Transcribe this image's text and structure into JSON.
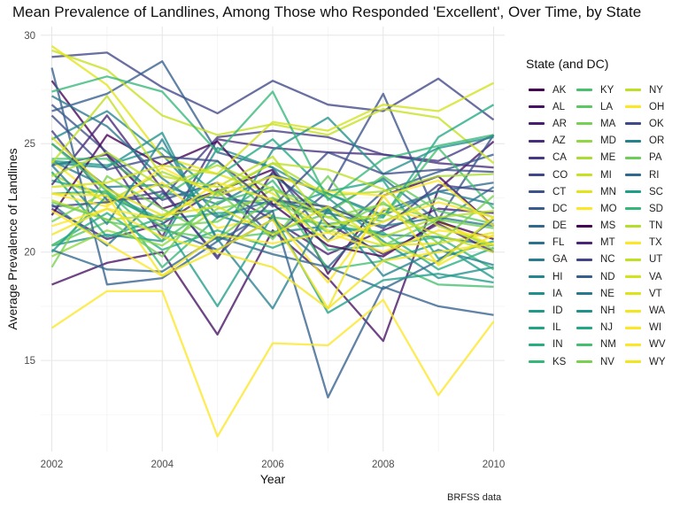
{
  "chart_data": {
    "type": "line",
    "title": "Mean Prevalence of Landlines, Among Those who Responded 'Excellent', Over Time, by State",
    "xlabel": "Year",
    "ylabel": "Average Prevalence of Landlines",
    "caption": "BRFSS data",
    "legend_title": "State (and DC)",
    "legend_position": "right",
    "grid": true,
    "xlim": [
      2001.8,
      2010.2
    ],
    "ylim": [
      10.8,
      30.4
    ],
    "x_ticks": [
      2002,
      2004,
      2006,
      2008,
      2010
    ],
    "y_ticks": [
      15,
      20,
      25,
      30
    ],
    "x": [
      2002,
      2003,
      2004,
      2005,
      2006,
      2007,
      2008,
      2009,
      2010
    ],
    "colormap": "viridis",
    "series": [
      {
        "name": "AK",
        "color": "#440154",
        "values": [
          27.9,
          24.5,
          22.0,
          22.8,
          23.8,
          19.0,
          22.6,
          23.5,
          21.2
        ]
      },
      {
        "name": "AL",
        "color": "#471164",
        "values": [
          18.5,
          19.5,
          20.0,
          16.2,
          21.0,
          18.8,
          15.9,
          22.9,
          25.1
        ]
      },
      {
        "name": "AR",
        "color": "#481F70",
        "values": [
          22.0,
          20.6,
          21.3,
          22.9,
          21.5,
          19.9,
          21.0,
          22.0,
          21.8
        ]
      },
      {
        "name": "AZ",
        "color": "#472D7B",
        "values": [
          24.0,
          24.5,
          20.7,
          25.2,
          24.8,
          24.6,
          24.5,
          24.1,
          23.9
        ]
      },
      {
        "name": "CA",
        "color": "#443A83",
        "values": [
          25.6,
          22.4,
          22.5,
          25.3,
          25.6,
          25.3,
          24.5,
          24.2,
          25.4
        ]
      },
      {
        "name": "CO",
        "color": "#404688",
        "values": [
          29.0,
          29.2,
          27.6,
          26.4,
          27.9,
          26.8,
          26.5,
          28.0,
          26.1
        ]
      },
      {
        "name": "CT",
        "color": "#3B528B",
        "values": [
          26.8,
          24.6,
          22.4,
          23.2,
          20.7,
          22.8,
          27.3,
          21.5,
          25.4
        ]
      },
      {
        "name": "DC",
        "color": "#365D8D",
        "values": [
          26.5,
          27.3,
          28.8,
          24.6,
          23.9,
          20.5,
          22.8,
          23.7,
          24.5
        ]
      },
      {
        "name": "DE",
        "color": "#31688E",
        "values": [
          25.0,
          23.0,
          21.1,
          20.1,
          21.5,
          19.3,
          21.9,
          22.8,
          23.2
        ]
      },
      {
        "name": "FL",
        "color": "#2C728E",
        "values": [
          22.2,
          20.3,
          22.7,
          22.5,
          22.2,
          21.9,
          23.4,
          21.4,
          23.0
        ]
      },
      {
        "name": "GA",
        "color": "#287C8E",
        "values": [
          24.2,
          23.0,
          23.1,
          22.2,
          23.6,
          22.7,
          21.7,
          22.8,
          22.2
        ]
      },
      {
        "name": "HI",
        "color": "#24868E",
        "values": [
          25.2,
          26.5,
          24.5,
          21.7,
          20.9,
          21.2,
          20.8,
          20.7,
          20.3
        ]
      },
      {
        "name": "IA",
        "color": "#21908C",
        "values": [
          20.3,
          20.8,
          20.5,
          24.8,
          23.9,
          22.5,
          20.5,
          18.8,
          19.3
        ]
      },
      {
        "name": "ID",
        "color": "#1F9A8A",
        "values": [
          24.2,
          24.0,
          24.8,
          22.6,
          23.5,
          21.9,
          19.6,
          20.4,
          18.8
        ]
      },
      {
        "name": "IL",
        "color": "#20A486",
        "values": [
          23.3,
          22.7,
          21.5,
          21.8,
          21.9,
          22.8,
          23.3,
          19.7,
          20.5
        ]
      },
      {
        "name": "IN",
        "color": "#27AD81",
        "values": [
          20.3,
          21.8,
          20.1,
          21.0,
          20.2,
          21.2,
          20.9,
          19.2,
          20.2
        ]
      },
      {
        "name": "KS",
        "color": "#35B779",
        "values": [
          22.7,
          22.8,
          19.3,
          21.6,
          23.3,
          20.1,
          20.3,
          20.7,
          19.2
        ]
      },
      {
        "name": "KY",
        "color": "#47C16E",
        "values": [
          24.3,
          24.3,
          22.5,
          24.2,
          21.6,
          21.3,
          21.6,
          24.8,
          22.0
        ]
      },
      {
        "name": "LA",
        "color": "#5DC863",
        "values": [
          20.3,
          21.4,
          21.0,
          20.6,
          20.9,
          21.8,
          23.5,
          21.9,
          21.3
        ]
      },
      {
        "name": "MA",
        "color": "#75D054",
        "values": [
          21.4,
          22.8,
          21.2,
          21.4,
          22.9,
          22.0,
          21.4,
          22.5,
          21.6
        ]
      },
      {
        "name": "MD",
        "color": "#8FD744",
        "values": [
          19.8,
          21.0,
          20.3,
          22.0,
          22.5,
          21.6,
          22.2,
          21.5,
          20.1
        ]
      },
      {
        "name": "ME",
        "color": "#AADC32",
        "values": [
          23.6,
          22.3,
          23.7,
          22.7,
          24.1,
          22.6,
          22.8,
          23.5,
          23.6
        ]
      },
      {
        "name": "MI",
        "color": "#C7E020",
        "values": [
          29.3,
          28.4,
          26.3,
          25.4,
          25.9,
          25.4,
          26.6,
          26.2,
          24.1
        ]
      },
      {
        "name": "MN",
        "color": "#E3E418",
        "values": [
          29.5,
          27.7,
          24.4,
          23.6,
          22.7,
          21.0,
          20.3,
          20.4,
          20.9
        ]
      },
      {
        "name": "MO",
        "color": "#FDE725",
        "values": [
          24.2,
          22.2,
          23.2,
          21.1,
          21.7,
          18.6,
          22.0,
          21.4,
          20.3
        ]
      },
      {
        "name": "MS",
        "color": "#440154",
        "values": [
          21.7,
          25.4,
          24.0,
          25.1,
          22.2,
          20.3,
          19.8,
          21.4,
          20.6
        ]
      },
      {
        "name": "MT",
        "color": "#482576",
        "values": [
          23.1,
          26.3,
          22.9,
          19.7,
          23.7,
          21.3,
          19.9,
          21.3,
          20.0
        ]
      },
      {
        "name": "NC",
        "color": "#414487",
        "values": [
          22.1,
          22.3,
          22.8,
          19.8,
          22.4,
          22.1,
          21.1,
          23.1,
          22.8
        ]
      },
      {
        "name": "ND",
        "color": "#35608D",
        "values": [
          28.5,
          18.5,
          18.8,
          20.5,
          21.9,
          13.3,
          18.4,
          17.5,
          17.1
        ]
      },
      {
        "name": "NE",
        "color": "#2A788E",
        "values": [
          27.2,
          25.8,
          23.4,
          21.6,
          22.4,
          21.8,
          21.2,
          21.6,
          21.2
        ]
      },
      {
        "name": "NH",
        "color": "#21918C",
        "values": [
          24.1,
          23.9,
          25.5,
          20.5,
          24.7,
          26.2,
          23.6,
          24.8,
          25.3
        ]
      },
      {
        "name": "NJ",
        "color": "#22A884",
        "values": [
          23.7,
          20.7,
          21.6,
          23.5,
          25.2,
          22.7,
          21.6,
          25.3,
          26.8
        ]
      },
      {
        "name": "NM",
        "color": "#44BF70",
        "values": [
          25.0,
          22.8,
          20.5,
          22.3,
          23.0,
          19.2,
          19.6,
          18.5,
          18.4
        ]
      },
      {
        "name": "NV",
        "color": "#7AD151",
        "values": [
          19.3,
          23.5,
          22.0,
          20.6,
          22.5,
          20.9,
          22.3,
          20.4,
          22.6
        ]
      },
      {
        "name": "NY",
        "color": "#BDDF26",
        "values": [
          22.4,
          21.5,
          21.7,
          22.8,
          24.1,
          23.8,
          22.9,
          21.2,
          20.3
        ]
      },
      {
        "name": "OH",
        "color": "#FDE725",
        "values": [
          22.7,
          22.1,
          23.9,
          22.6,
          23.5,
          22.8,
          22.6,
          23.3,
          21.2
        ]
      },
      {
        "name": "OK",
        "color": "#3E4A89",
        "values": [
          26.3,
          23.8,
          24.4,
          24.2,
          22.1,
          24.6,
          23.6,
          23.8,
          23.7
        ]
      },
      {
        "name": "OR",
        "color": "#26828E",
        "values": [
          24.0,
          21.3,
          25.2,
          20.6,
          17.4,
          22.0,
          18.9,
          20.1,
          19.4
        ]
      },
      {
        "name": "PA",
        "color": "#6DCD59",
        "values": [
          22.3,
          21.5,
          19.8,
          22.8,
          20.6,
          23.5,
          20.3,
          21.5,
          21.1
        ]
      },
      {
        "name": "RI",
        "color": "#31688E",
        "values": [
          20.1,
          19.2,
          19.1,
          20.7,
          19.9,
          19.3,
          18.3,
          19.6,
          21.5
        ]
      },
      {
        "name": "SC",
        "color": "#1F9E89",
        "values": [
          20.0,
          22.6,
          21.4,
          17.5,
          21.7,
          17.2,
          18.7,
          19.0,
          18.6
        ]
      },
      {
        "name": "SD",
        "color": "#35B779",
        "values": [
          27.4,
          28.1,
          27.4,
          24.6,
          27.4,
          22.4,
          24.3,
          24.9,
          25.4
        ]
      },
      {
        "name": "TN",
        "color": "#B4DE2C",
        "values": [
          23.5,
          24.6,
          23.0,
          24.0,
          22.9,
          21.6,
          20.7,
          21.6,
          21.9
        ]
      },
      {
        "name": "TX",
        "color": "#FDE725",
        "values": [
          21.9,
          20.4,
          18.9,
          20.8,
          20.4,
          20.9,
          20.0,
          21.0,
          20.7
        ]
      },
      {
        "name": "UT",
        "color": "#C2DF23",
        "values": [
          24.1,
          27.2,
          23.5,
          23.0,
          24.4,
          21.2,
          21.8,
          20.8,
          20.0
        ]
      },
      {
        "name": "VA",
        "color": "#D2E21B",
        "values": [
          23.0,
          23.2,
          24.0,
          23.6,
          26.0,
          25.6,
          26.8,
          26.5,
          27.8
        ]
      },
      {
        "name": "VT",
        "color": "#DDE318",
        "values": [
          25.3,
          22.9,
          21.7,
          22.1,
          20.8,
          22.1,
          20.4,
          19.5,
          21.6
        ]
      },
      {
        "name": "WA",
        "color": "#F4E61E",
        "values": [
          22.7,
          22.6,
          18.9,
          20.1,
          21.5,
          17.4,
          22.6,
          19.4,
          20.8
        ]
      },
      {
        "name": "WI",
        "color": "#FDE725",
        "values": [
          21.2,
          22.0,
          21.5,
          23.2,
          22.4,
          20.5,
          21.4,
          22.3,
          21.6
        ]
      },
      {
        "name": "WV",
        "color": "#FDE725",
        "values": [
          16.5,
          18.2,
          18.2,
          11.5,
          15.8,
          15.7,
          17.8,
          13.4,
          16.8
        ]
      },
      {
        "name": "WY",
        "color": "#F2E51D",
        "values": [
          20.8,
          22.0,
          20.7,
          20.0,
          19.3,
          17.4,
          19.6,
          20.0,
          20.4
        ]
      }
    ]
  }
}
